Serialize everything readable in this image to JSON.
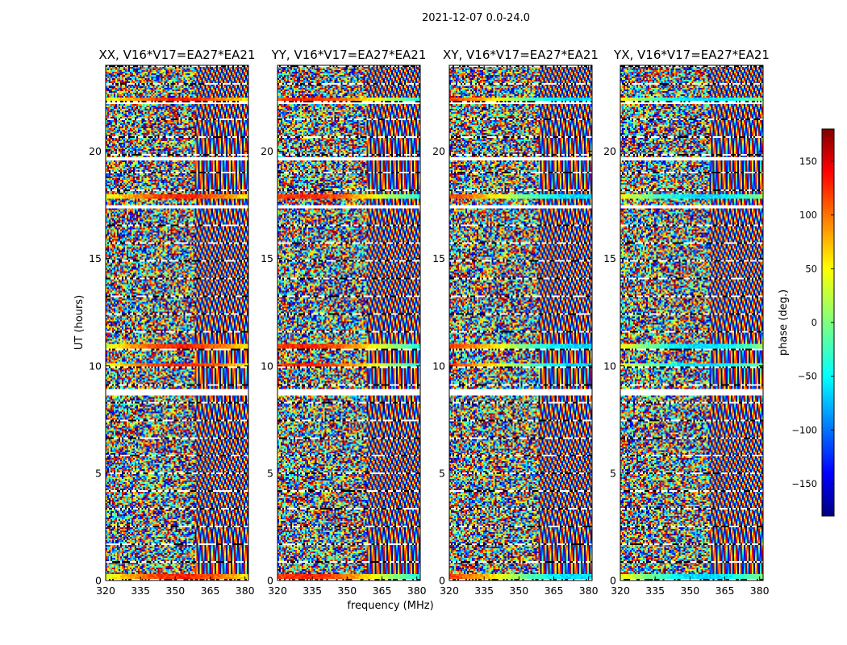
{
  "figure": {
    "suptitle": "2021-12-07 0.0-24.0",
    "xlabel": "frequency (MHz)",
    "ylabel": "UT (hours)"
  },
  "chart_data": {
    "type": "heatmap",
    "title": "2021-12-07 0.0-24.0",
    "xlabel": "frequency (MHz)",
    "ylabel": "UT (hours)",
    "xlim": [
      320,
      381.5
    ],
    "ylim": [
      0,
      24
    ],
    "x_ticks": [
      320,
      335,
      350,
      365,
      380
    ],
    "y_ticks": [
      0,
      5,
      10,
      15,
      20
    ],
    "colormap": "jet",
    "colorbar": {
      "label": "phase (deg.)",
      "range": [
        -180,
        180
      ],
      "ticks": [
        150,
        100,
        50,
        0,
        -50,
        -100,
        -150
      ],
      "tick_labels": [
        "150",
        "100",
        "50",
        "0",
        "−50",
        "−100",
        "−150"
      ],
      "colors": [
        "#7f0000",
        "#ff0000",
        "#ff7f00",
        "#ffff00",
        "#7fff7f",
        "#00ffff",
        "#007fff",
        "#0000ff",
        "#00007f"
      ]
    },
    "panels": [
      {
        "title": "XX, V16*V17=EA27*EA21",
        "correlation": "XX"
      },
      {
        "title": "YY, V16*V17=EA27*EA21",
        "correlation": "YY"
      },
      {
        "title": "XY, V16*V17=EA27*EA21",
        "correlation": "XY"
      },
      {
        "title": "YX, V16*V17=EA27*EA21",
        "correlation": "YX"
      }
    ],
    "blank_time_bands_hours": [
      [
        8.6,
        8.9
      ],
      [
        17.3,
        17.5
      ],
      [
        22.2,
        22.3
      ],
      [
        19.6,
        19.7
      ]
    ],
    "strong_time_bands_hours": [
      [
        0.05,
        0.3
      ],
      [
        9.9,
        10.1
      ],
      [
        10.8,
        11.0
      ],
      [
        17.8,
        18.0
      ],
      [
        22.3,
        22.5
      ]
    ]
  }
}
